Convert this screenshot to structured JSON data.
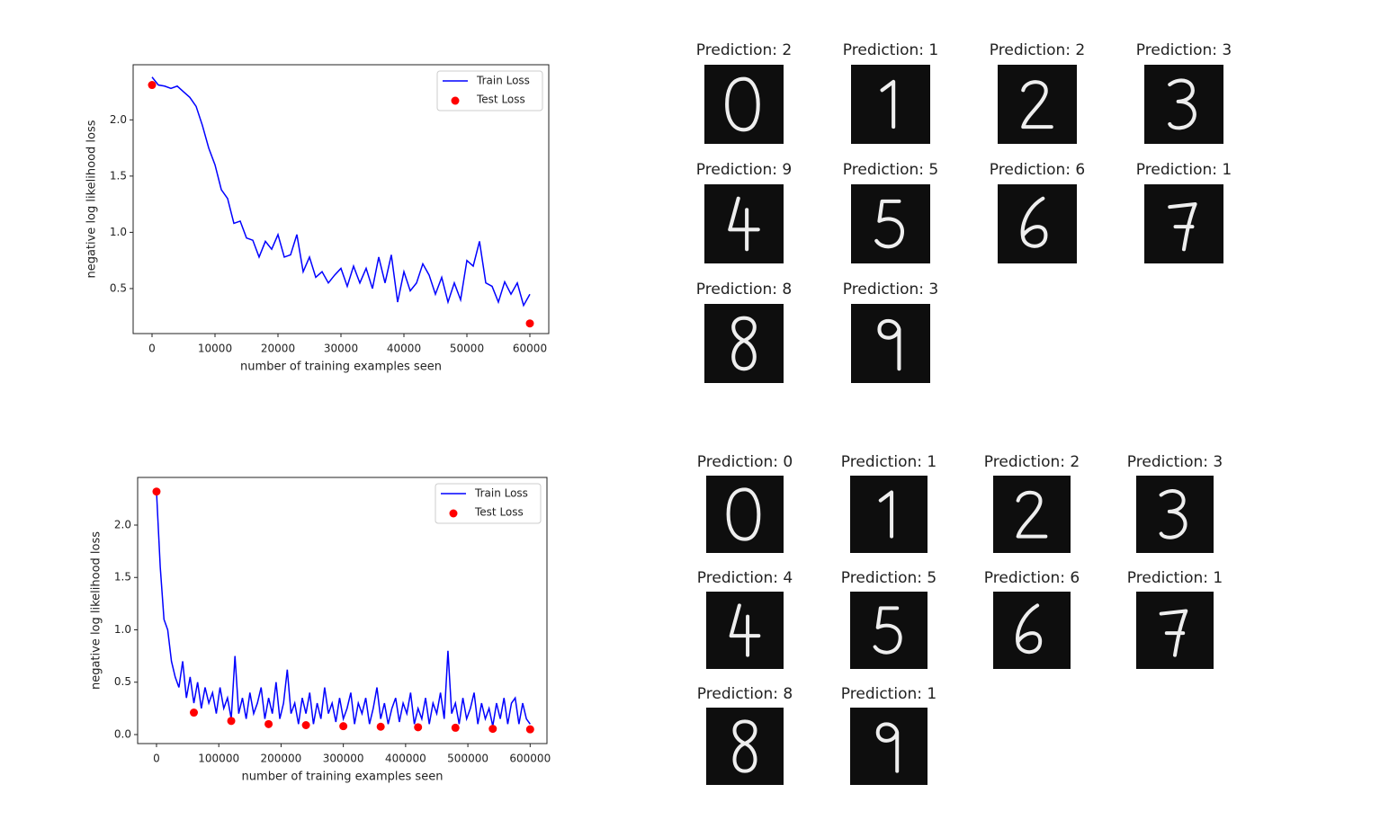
{
  "chart_data": [
    {
      "type": "line",
      "x_label": "number of training examples seen",
      "y_label": "negative log likelihood loss",
      "xlim": [
        -3000,
        63000
      ],
      "ylim": [
        0.1,
        2.49
      ],
      "xticks": [
        0,
        10000,
        20000,
        30000,
        40000,
        50000,
        60000
      ],
      "yticks": [
        0.5,
        {
          "value": 1,
          "label": "1.0"
        },
        1.5,
        {
          "value": 2,
          "label": "2.0"
        }
      ],
      "grid": false,
      "legend": "upper right",
      "series": [
        {
          "name": "Train Loss",
          "color": "#0000ff",
          "style": "line",
          "x": [
            0,
            1000,
            2000,
            3000,
            4000,
            5000,
            6000,
            7000,
            8000,
            9000,
            10000,
            11000,
            12000,
            13000,
            14000,
            15000,
            16000,
            17000,
            18000,
            19000,
            20000,
            21000,
            22000,
            23000,
            24000,
            25000,
            26000,
            27000,
            28000,
            29000,
            30000,
            31000,
            32000,
            33000,
            34000,
            35000,
            36000,
            37000,
            38000,
            39000,
            40000,
            41000,
            42000,
            43000,
            44000,
            45000,
            46000,
            47000,
            48000,
            49000,
            50000,
            51000,
            52000,
            53000,
            54000,
            55000,
            56000,
            57000,
            58000,
            59000,
            60000
          ],
          "values": [
            2.38,
            2.31,
            2.3,
            2.28,
            2.3,
            2.25,
            2.2,
            2.12,
            1.95,
            1.75,
            1.6,
            1.38,
            1.3,
            1.08,
            1.1,
            0.95,
            0.93,
            0.78,
            0.92,
            0.85,
            0.98,
            0.78,
            0.8,
            0.98,
            0.65,
            0.78,
            0.6,
            0.65,
            0.55,
            0.62,
            0.68,
            0.52,
            0.7,
            0.55,
            0.68,
            0.5,
            0.78,
            0.55,
            0.8,
            0.38,
            0.65,
            0.48,
            0.55,
            0.72,
            0.62,
            0.45,
            0.6,
            0.38,
            0.55,
            0.4,
            0.75,
            0.7,
            0.92,
            0.55,
            0.52,
            0.38,
            0.56,
            0.45,
            0.55,
            0.35,
            0.45
          ]
        },
        {
          "name": "Test Loss",
          "color": "#ff0000",
          "style": "scatter",
          "x": [
            0,
            60000
          ],
          "values": [
            2.31,
            0.19
          ]
        }
      ]
    },
    {
      "type": "line",
      "x_label": "number of training examples seen",
      "y_label": "negative log likelihood loss",
      "xlim": [
        -30300,
        627000
      ],
      "ylim": [
        -0.086,
        2.455
      ],
      "xticks": [
        0,
        100000,
        200000,
        300000,
        400000,
        500000,
        600000
      ],
      "yticks": [
        {
          "value": 0,
          "label": "0.0"
        },
        0.5,
        {
          "value": 1,
          "label": "1.0"
        },
        1.5,
        {
          "value": 2,
          "label": "2.0"
        }
      ],
      "grid": false,
      "legend": "upper right",
      "series": [
        {
          "name": "Train Loss",
          "color": "#0000ff",
          "style": "line",
          "x": [
            0,
            6000,
            12000,
            18000,
            24000,
            30000,
            36000,
            42000,
            48000,
            54000,
            60000,
            66000,
            72000,
            78000,
            84000,
            90000,
            96000,
            102000,
            108000,
            114000,
            120000,
            126000,
            132000,
            138000,
            144000,
            150000,
            156000,
            162000,
            168000,
            174000,
            180000,
            186000,
            192000,
            198000,
            204000,
            210000,
            216000,
            222000,
            228000,
            234000,
            240000,
            246000,
            252000,
            258000,
            264000,
            270000,
            276000,
            282000,
            288000,
            294000,
            300000,
            306000,
            312000,
            318000,
            324000,
            330000,
            336000,
            342000,
            348000,
            354000,
            360000,
            366000,
            372000,
            378000,
            384000,
            390000,
            396000,
            402000,
            408000,
            414000,
            420000,
            426000,
            432000,
            438000,
            444000,
            450000,
            456000,
            462000,
            468000,
            474000,
            480000,
            486000,
            492000,
            498000,
            504000,
            510000,
            516000,
            522000,
            528000,
            534000,
            540000,
            546000,
            552000,
            558000,
            564000,
            570000,
            576000,
            582000,
            588000,
            594000,
            600000
          ],
          "values": [
            2.32,
            1.6,
            1.1,
            1.0,
            0.7,
            0.55,
            0.45,
            0.7,
            0.35,
            0.55,
            0.3,
            0.5,
            0.25,
            0.45,
            0.3,
            0.4,
            0.2,
            0.45,
            0.25,
            0.35,
            0.15,
            0.75,
            0.2,
            0.35,
            0.15,
            0.4,
            0.2,
            0.3,
            0.45,
            0.15,
            0.35,
            0.2,
            0.5,
            0.15,
            0.3,
            0.62,
            0.2,
            0.3,
            0.1,
            0.35,
            0.2,
            0.4,
            0.1,
            0.3,
            0.15,
            0.45,
            0.2,
            0.3,
            0.12,
            0.35,
            0.15,
            0.25,
            0.4,
            0.1,
            0.3,
            0.2,
            0.35,
            0.1,
            0.25,
            0.45,
            0.15,
            0.3,
            0.1,
            0.25,
            0.35,
            0.12,
            0.3,
            0.2,
            0.4,
            0.1,
            0.25,
            0.15,
            0.35,
            0.1,
            0.3,
            0.2,
            0.4,
            0.15,
            0.8,
            0.2,
            0.3,
            0.1,
            0.35,
            0.15,
            0.25,
            0.4,
            0.1,
            0.3,
            0.15,
            0.25,
            0.08,
            0.3,
            0.15,
            0.35,
            0.1,
            0.3,
            0.35,
            0.1,
            0.3,
            0.15,
            0.1
          ]
        },
        {
          "name": "Test Loss",
          "color": "#ff0000",
          "style": "scatter",
          "x": [
            0,
            60000,
            120000,
            180000,
            240000,
            300000,
            360000,
            420000,
            480000,
            540000,
            600000
          ],
          "values": [
            2.32,
            0.21,
            0.13,
            0.1,
            0.09,
            0.08,
            0.075,
            0.07,
            0.065,
            0.055,
            0.05
          ]
        }
      ]
    }
  ],
  "prediction_panels": [
    {
      "labels": [
        "Prediction: 2",
        "Prediction: 1",
        "Prediction: 2",
        "Prediction: 3",
        "Prediction: 9",
        "Prediction: 5",
        "Prediction: 6",
        "Prediction: 1",
        "Prediction: 8",
        "Prediction: 3"
      ]
    },
    {
      "labels": [
        "Prediction: 0",
        "Prediction: 1",
        "Prediction: 2",
        "Prediction: 3",
        "Prediction: 4",
        "Prediction: 5",
        "Prediction: 6",
        "Prediction: 1",
        "Prediction: 8",
        "Prediction: 1"
      ]
    }
  ]
}
